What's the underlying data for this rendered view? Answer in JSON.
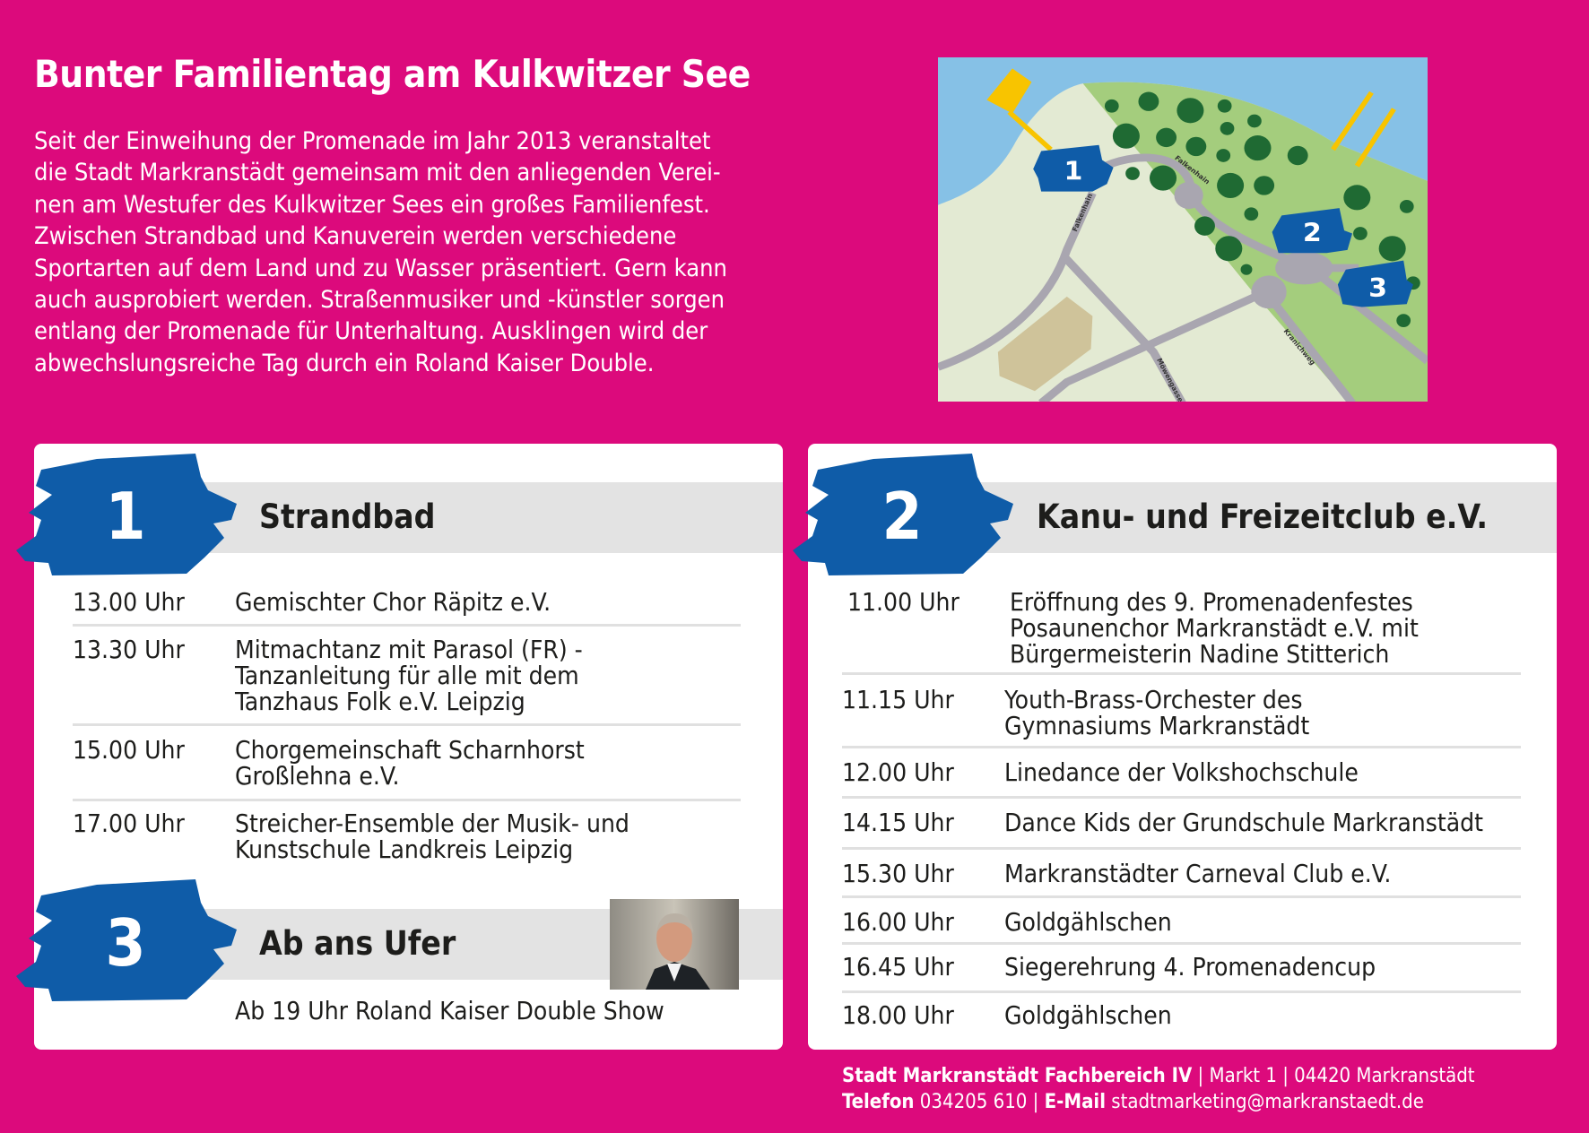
{
  "title": "Bunter Familientag am Kulkwitzer See",
  "intro": [
    "Seit der Einweihung der Promenade im Jahr 2013 veranstaltet",
    "die Stadt Markranstädt gemeinsam mit den anliegenden Verei-",
    "nen am Westufer des Kulkwitzer Sees ein großes Familienfest.",
    "Zwischen Strandbad und Kanuverein werden verschiedene",
    "Sportarten auf dem Land und zu Wasser präsentiert. Gern kann",
    "auch ausprobiert werden. Straßenmusiker und -künstler sorgen",
    "entlang der Promenade für Unterhaltung. Ausklingen wird der",
    "abwechslungsreiche Tag durch ein Roland Kaiser Double."
  ],
  "map": {
    "markers": [
      "1",
      "2",
      "3"
    ],
    "streets": [
      "Falkenhain",
      "Falkenhain",
      "Möwengasse",
      "Kranichweg"
    ]
  },
  "colors": {
    "background": "#dc0a7c",
    "brush": "#0f5ca8",
    "band": "#e3e3e3"
  },
  "sections": {
    "s1": {
      "number": "1",
      "title": "Strandbad",
      "rows": [
        {
          "time": "13.00 Uhr",
          "lines": [
            "Gemischter Chor Räpitz e.V."
          ]
        },
        {
          "time": "13.30 Uhr",
          "lines": [
            "Mitmachtanz mit Parasol (FR) -",
            "Tanzanleitung für alle mit dem",
            "Tanzhaus Folk e.V. Leipzig"
          ]
        },
        {
          "time": "15.00 Uhr",
          "lines": [
            "Chorgemeinschaft Scharnhorst",
            "Großlehna e.V."
          ]
        },
        {
          "time": "17.00 Uhr",
          "lines": [
            "Streicher-Ensemble der Musik- und",
            "Kunstschule Landkreis Leipzig"
          ]
        }
      ]
    },
    "s3": {
      "number": "3",
      "title": "Ab ans Ufer",
      "text": "Ab 19 Uhr Roland Kaiser Double Show"
    },
    "s2": {
      "number": "2",
      "title": "Kanu- und Freizeitclub e.V.",
      "rows": [
        {
          "time": "11.00 Uhr",
          "lines": [
            "Eröffnung des 9. Promenadenfestes",
            "Posaunenchor Markranstädt e.V. mit",
            "Bürgermeisterin Nadine Stitterich"
          ]
        },
        {
          "time": "11.15 Uhr",
          "lines": [
            "Youth-Brass-Orchester des",
            "Gymnasiums Markranstädt"
          ]
        },
        {
          "time": "12.00 Uhr",
          "lines": [
            "Linedance der Volkshochschule"
          ]
        },
        {
          "time": "14.15 Uhr",
          "lines": [
            "Dance Kids der Grundschule Markranstädt"
          ]
        },
        {
          "time": "15.30 Uhr",
          "lines": [
            "Markranstädter Carneval Club e.V."
          ]
        },
        {
          "time": "16.00 Uhr",
          "lines": [
            "Goldgählschen"
          ]
        },
        {
          "time": "16.45 Uhr",
          "lines": [
            "Siegerehrung 4. Promenadencup"
          ]
        },
        {
          "time": "18.00 Uhr",
          "lines": [
            "Goldgählschen"
          ]
        }
      ]
    }
  },
  "footer": {
    "org": "Stadt Markranstädt Fachbereich IV",
    "address": " | Markt 1 | 04420 Markranstädt",
    "phone_label": "Telefon",
    "phone": " 034205 610 | ",
    "email_label": "E-Mail",
    "email": " stadtmarketing@markranstaedt.de"
  }
}
